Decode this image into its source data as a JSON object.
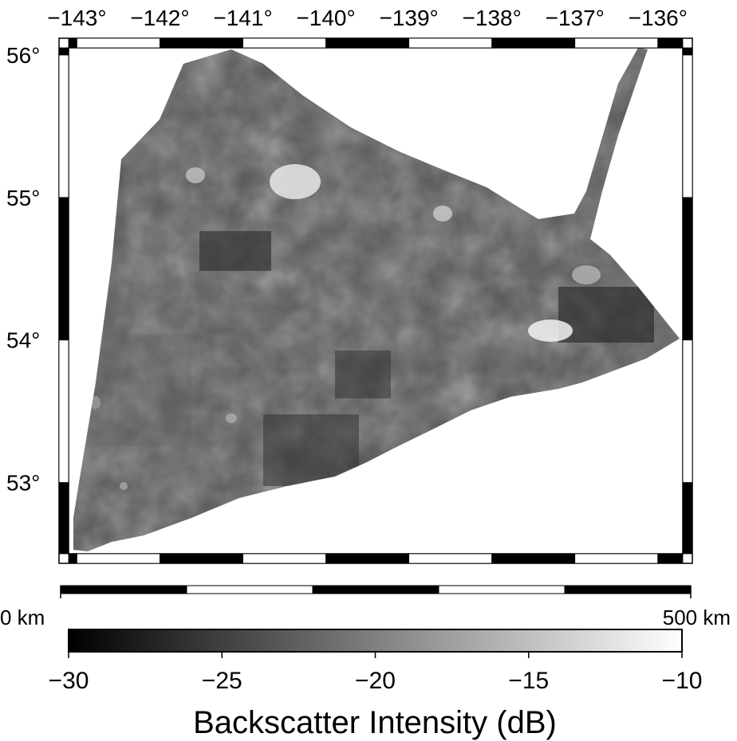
{
  "map": {
    "longitude_ticks": [
      "−143°",
      "−142°",
      "−141°",
      "−140°",
      "−139°",
      "−138°",
      "−137°",
      "−136°"
    ],
    "latitude_ticks": [
      "56°",
      "55°",
      "54°",
      "53°"
    ],
    "longitude_range": [
      -143.1,
      -135.7
    ],
    "latitude_range": [
      52.5,
      56.05
    ],
    "frame_style": "alternating black/white graduated border",
    "colors": {
      "frame_dark": "#000000",
      "frame_light": "#ffffff",
      "background": "#ffffff"
    }
  },
  "scale_bar": {
    "start_label": "0 km",
    "end_label": "500 km",
    "segments": 5
  },
  "colorbar": {
    "title": "Backscatter Intensity (dB)",
    "ticks": [
      "−30",
      "−25",
      "−20",
      "−15",
      "−10"
    ],
    "min": -30,
    "max": -10,
    "colors": {
      "low": "#000000",
      "high": "#ffffff"
    }
  }
}
